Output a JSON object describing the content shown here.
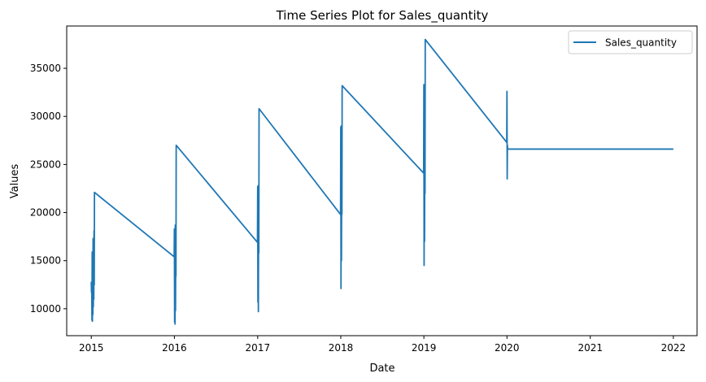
{
  "chart_data": {
    "type": "line",
    "title": "Time Series Plot for Sales_quantity",
    "xlabel": "Date",
    "ylabel": "Values",
    "xlim": [
      "2014-09-15",
      "2022-04-15"
    ],
    "ylim": [
      7200,
      39400
    ],
    "x_ticks": [
      "2015",
      "2016",
      "2017",
      "2018",
      "2019",
      "2020",
      "2021",
      "2022"
    ],
    "y_ticks": [
      10000,
      15000,
      20000,
      25000,
      30000,
      35000
    ],
    "grid": false,
    "legend_position": "top-right",
    "series": [
      {
        "name": "Sales_quantity",
        "color": "#1f77b4",
        "points": [
          [
            "2015-01-01",
            12800
          ],
          [
            "2015-01-02",
            11700
          ],
          [
            "2015-01-03",
            12400
          ],
          [
            "2015-01-04",
            8800
          ],
          [
            "2015-01-05",
            15900
          ],
          [
            "2015-01-06",
            8700
          ],
          [
            "2015-01-07",
            14700
          ],
          [
            "2015-01-08",
            9400
          ],
          [
            "2015-01-09",
            17300
          ],
          [
            "2015-01-10",
            10200
          ],
          [
            "2015-01-11",
            15700
          ],
          [
            "2015-01-12",
            11000
          ],
          [
            "2015-01-13",
            18100
          ],
          [
            "2015-01-14",
            12500
          ],
          [
            "2015-01-15",
            22100
          ],
          [
            "2015-12-31",
            15400
          ],
          [
            "2016-01-01",
            18300
          ],
          [
            "2016-01-02",
            8600
          ],
          [
            "2016-01-03",
            17100
          ],
          [
            "2016-01-04",
            8400
          ],
          [
            "2016-01-05",
            18700
          ],
          [
            "2016-01-06",
            9800
          ],
          [
            "2016-01-07",
            15000
          ],
          [
            "2016-01-08",
            13400
          ],
          [
            "2016-01-09",
            27000
          ],
          [
            "2016-12-31",
            16900
          ],
          [
            "2017-01-01",
            22700
          ],
          [
            "2017-01-02",
            10700
          ],
          [
            "2017-01-03",
            22800
          ],
          [
            "2017-01-04",
            9700
          ],
          [
            "2017-01-05",
            19800
          ],
          [
            "2017-01-06",
            15800
          ],
          [
            "2017-01-07",
            30800
          ],
          [
            "2017-12-31",
            19800
          ],
          [
            "2018-01-01",
            28900
          ],
          [
            "2018-01-02",
            12100
          ],
          [
            "2018-01-03",
            29000
          ],
          [
            "2018-01-04",
            15000
          ],
          [
            "2018-01-05",
            25000
          ],
          [
            "2018-01-06",
            19800
          ],
          [
            "2018-01-07",
            33200
          ],
          [
            "2018-12-31",
            24100
          ],
          [
            "2019-01-01",
            33300
          ],
          [
            "2019-01-02",
            14500
          ],
          [
            "2019-01-03",
            33300
          ],
          [
            "2019-01-04",
            17000
          ],
          [
            "2019-01-05",
            26000
          ],
          [
            "2019-01-06",
            22000
          ],
          [
            "2019-01-07",
            38000
          ],
          [
            "2019-12-31",
            27300
          ],
          [
            "2020-01-01",
            32600
          ],
          [
            "2020-01-02",
            23500
          ],
          [
            "2020-01-03",
            27000
          ],
          [
            "2020-01-04",
            26600
          ],
          [
            "2022-01-01",
            26600
          ]
        ]
      }
    ]
  }
}
